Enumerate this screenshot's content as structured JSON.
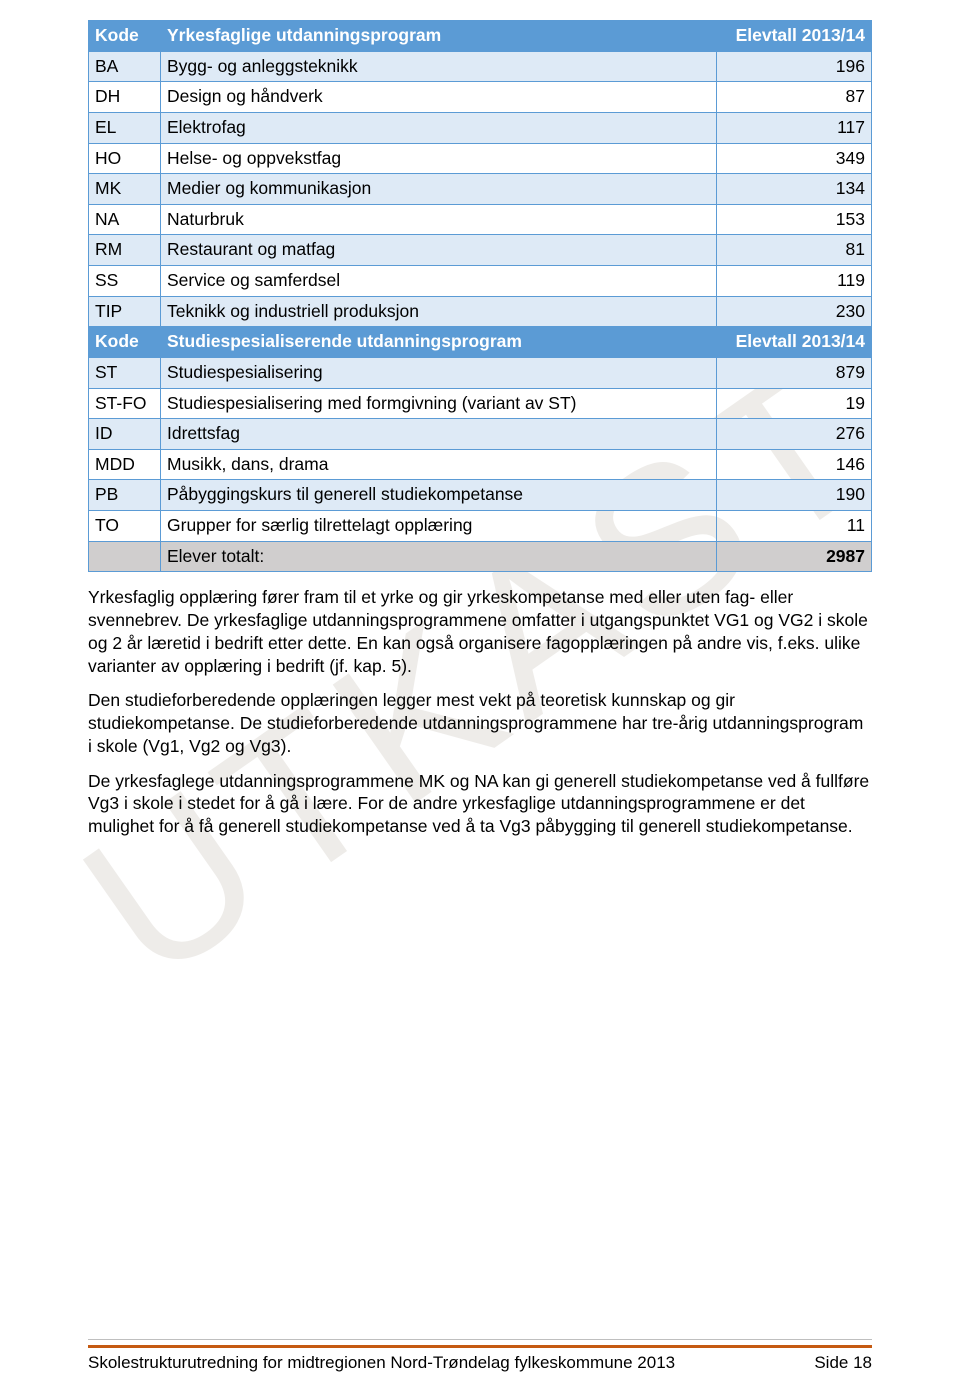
{
  "table": {
    "header1": {
      "c1": "Kode",
      "c2": "Yrkesfaglige utdanningsprogram",
      "c3": "Elevtall 2013/14"
    },
    "rows1": [
      {
        "c1": "BA",
        "c2": "Bygg- og anleggsteknikk",
        "c3": "196"
      },
      {
        "c1": "DH",
        "c2": "Design og håndverk",
        "c3": "87"
      },
      {
        "c1": "EL",
        "c2": "Elektrofag",
        "c3": "117"
      },
      {
        "c1": "HO",
        "c2": "Helse- og oppvekstfag",
        "c3": "349"
      },
      {
        "c1": "MK",
        "c2": "Medier og kommunikasjon",
        "c3": "134"
      },
      {
        "c1": "NA",
        "c2": "Naturbruk",
        "c3": "153"
      },
      {
        "c1": "RM",
        "c2": "Restaurant og matfag",
        "c3": "81"
      },
      {
        "c1": "SS",
        "c2": "Service og samferdsel",
        "c3": "119"
      },
      {
        "c1": "TIP",
        "c2": "Teknikk og industriell produksjon",
        "c3": "230"
      }
    ],
    "header2": {
      "c1": "Kode",
      "c2": "Studiespesialiserende utdanningsprogram",
      "c3": "Elevtall 2013/14"
    },
    "rows2": [
      {
        "c1": "ST",
        "c2": "Studiespesialisering",
        "c3": "879"
      },
      {
        "c1": "ST-FO",
        "c2": "Studiespesialisering med formgivning (variant av ST)",
        "c3": "19"
      },
      {
        "c1": "ID",
        "c2": "Idrettsfag",
        "c3": "276"
      },
      {
        "c1": "MDD",
        "c2": "Musikk, dans, drama",
        "c3": "146"
      },
      {
        "c1": "PB",
        "c2": "Påbyggingskurs til generell studiekompetanse",
        "c3": "190"
      },
      {
        "c1": "TO",
        "c2": "Grupper for særlig tilrettelagt opplæring",
        "c3": "11"
      }
    ],
    "total": {
      "c2": "Elever totalt:",
      "c3": "2987"
    }
  },
  "paragraphs": {
    "p1": "Yrkesfaglig opplæring fører fram til et yrke og gir yrkeskompetanse med eller uten fag- eller svennebrev. De yrkesfaglige utdanningsprogrammene omfatter i utgangspunktet VG1 og VG2 i skole og 2 år læretid i bedrift etter dette. En kan også organisere fagopplæringen på andre vis, f.eks. ulike varianter av opplæring i bedrift (jf. kap. 5).",
    "p2": "Den studieforberedende opplæringen legger mest vekt på teoretisk kunnskap og gir studiekompetanse. De studieforberedende utdanningsprogrammene har tre-årig utdanningsprogram i skole (Vg1, Vg2 og Vg3).",
    "p3": "De yrkesfaglege utdanningsprogrammene MK og NA kan gi generell studiekompetanse ved å fullføre Vg3 i skole i stedet for å gå i lære. For de andre yrkesfaglige utdanningsprogrammene er det mulighet for å få generell studiekompetanse ved å ta Vg3 påbygging til generell studiekompetanse."
  },
  "watermark": "UTKAST",
  "footer": {
    "left": "Skolestrukturutredning for midtregionen Nord-Trøndelag fylkeskommune 2013",
    "right_label": "Side ",
    "right_num": "18"
  },
  "colors": {
    "header_bg": "#5b9bd5",
    "alt_bg": "#deeaf6",
    "total_bg": "#d0cece",
    "footer_rule": "#c55a11",
    "watermark_color": "rgba(140,125,105,0.15)"
  }
}
